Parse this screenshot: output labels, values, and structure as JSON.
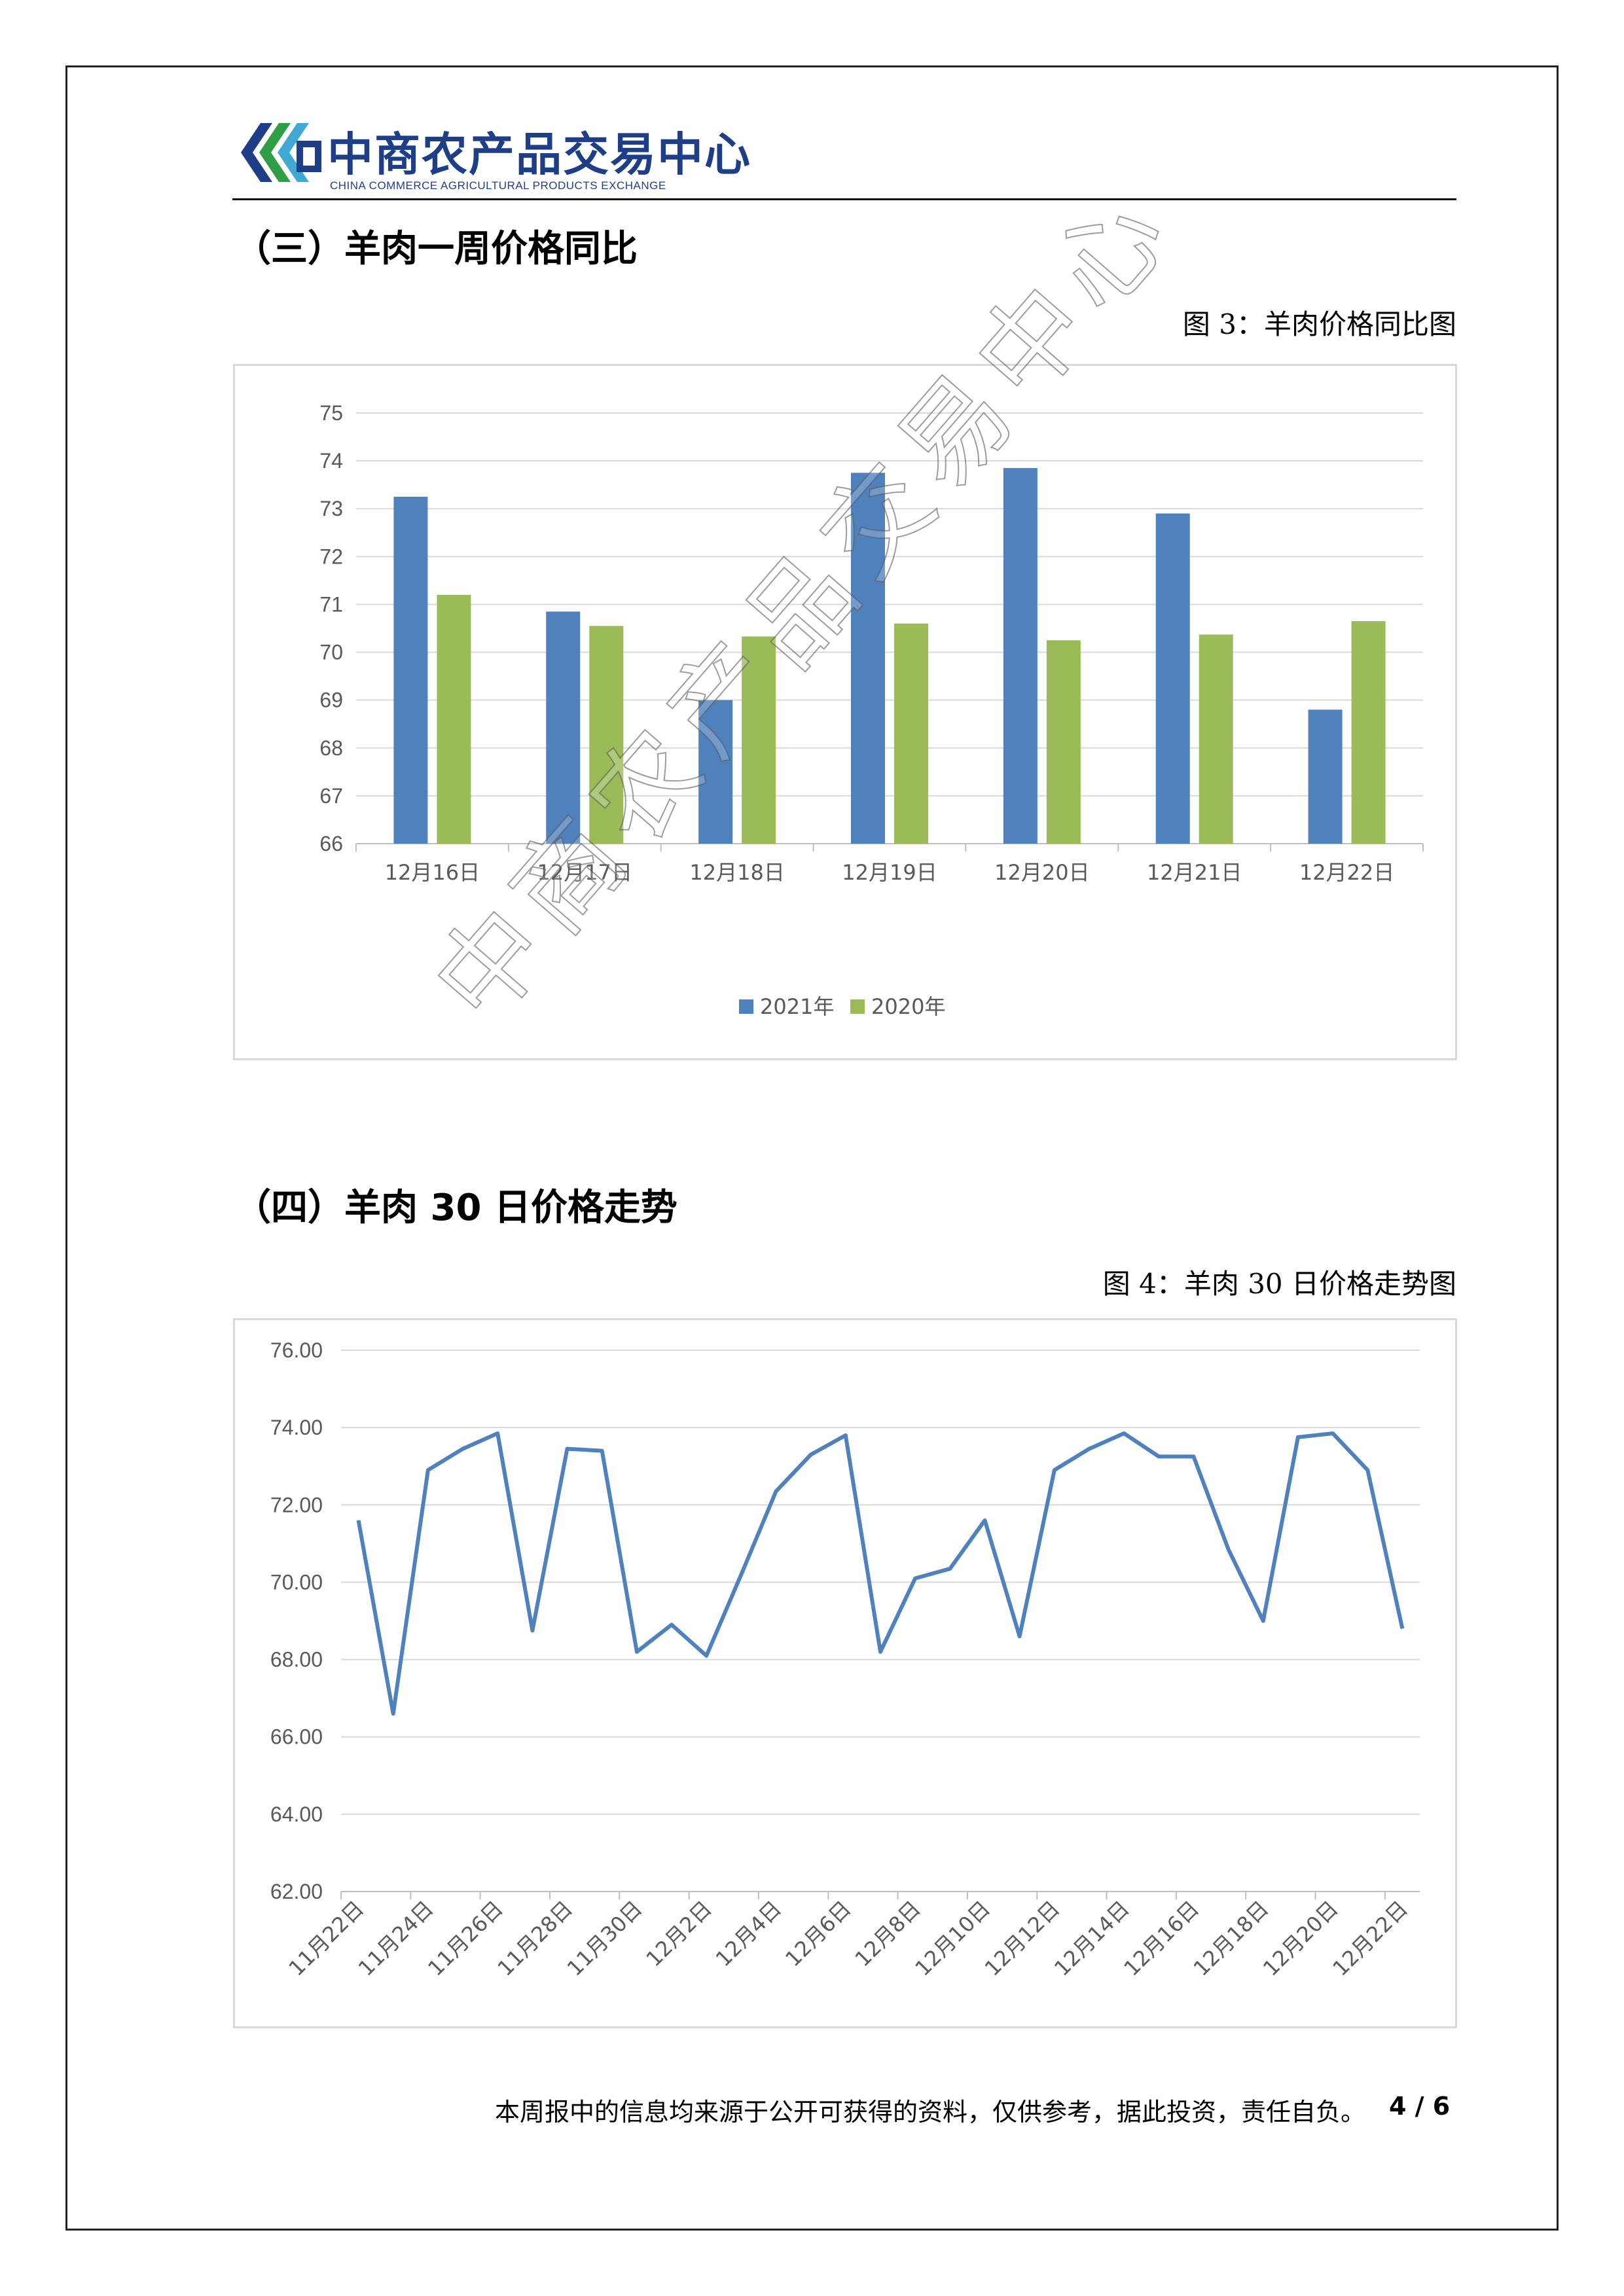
{
  "header": {
    "brand_cn": "中商农产品交易中心",
    "brand_en": "CHINA COMMERCE AGRICULTURAL PRODUCTS EXCHANGE",
    "logo_colors": [
      "#1e3f87",
      "#2f9e44",
      "#3fa9d4"
    ]
  },
  "section3": {
    "title": "（三）羊肉一周价格同比",
    "caption": "图 3：羊肉价格同比图"
  },
  "section4": {
    "title": "（四）羊肉 30 日价格走势",
    "caption": "图 4：羊肉 30 日价格走势图"
  },
  "watermark": "中商农产品交易中心",
  "footer": {
    "disclaimer": "本周报中的信息均来源于公开可获得的资料，仅供参考，据此投资，责任自负。",
    "page": "4 / 6"
  },
  "chart_data": [
    {
      "type": "bar",
      "categories": [
        "12月16日",
        "12月17日",
        "12月18日",
        "12月19日",
        "12月20日",
        "12月21日",
        "12月22日"
      ],
      "series": [
        {
          "name": "2021年",
          "color": "#4f81bd",
          "values": [
            73.25,
            70.85,
            69.0,
            73.75,
            73.85,
            72.9,
            68.8
          ]
        },
        {
          "name": "2020年",
          "color": "#9bbb59",
          "values": [
            71.2,
            70.55,
            70.33,
            70.6,
            70.25,
            70.37,
            70.65
          ]
        }
      ],
      "ylim": [
        66,
        75
      ],
      "yticks": [
        66,
        67,
        68,
        69,
        70,
        71,
        72,
        73,
        74,
        75
      ],
      "grid": true,
      "legend": "bottom"
    },
    {
      "type": "line",
      "x": [
        "11月22日",
        "11月23日",
        "11月24日",
        "11月25日",
        "11月26日",
        "11月27日",
        "11月28日",
        "11月29日",
        "11月30日",
        "12月1日",
        "12月2日",
        "12月3日",
        "12月4日",
        "12月5日",
        "12月6日",
        "12月7日",
        "12月8日",
        "12月9日",
        "12月10日",
        "12月11日",
        "12月12日",
        "12月13日",
        "12月14日",
        "12月15日",
        "12月16日",
        "12月17日",
        "12月18日",
        "12月19日",
        "12月20日",
        "12月21日",
        "12月22日"
      ],
      "xtick_labels": [
        "11月22日",
        "11月24日",
        "11月26日",
        "11月28日",
        "11月30日",
        "12月2日",
        "12月4日",
        "12月6日",
        "12月8日",
        "12月10日",
        "12月12日",
        "12月14日",
        "12月16日",
        "12月18日",
        "12月20日",
        "12月22日"
      ],
      "series": [
        {
          "color": "#4f81bd",
          "values": [
            71.6,
            66.6,
            72.9,
            73.45,
            73.85,
            68.75,
            73.45,
            73.4,
            68.2,
            68.9,
            68.1,
            70.2,
            72.35,
            73.3,
            73.8,
            68.2,
            70.1,
            70.35,
            71.6,
            68.6,
            72.9,
            73.45,
            73.85,
            73.25,
            73.25,
            70.85,
            69.0,
            73.75,
            73.85,
            72.9,
            68.8
          ]
        }
      ],
      "ylim": [
        62,
        76
      ],
      "yticks": [
        "62.00",
        "64.00",
        "66.00",
        "68.00",
        "70.00",
        "72.00",
        "74.00",
        "76.00"
      ],
      "grid": true
    }
  ]
}
